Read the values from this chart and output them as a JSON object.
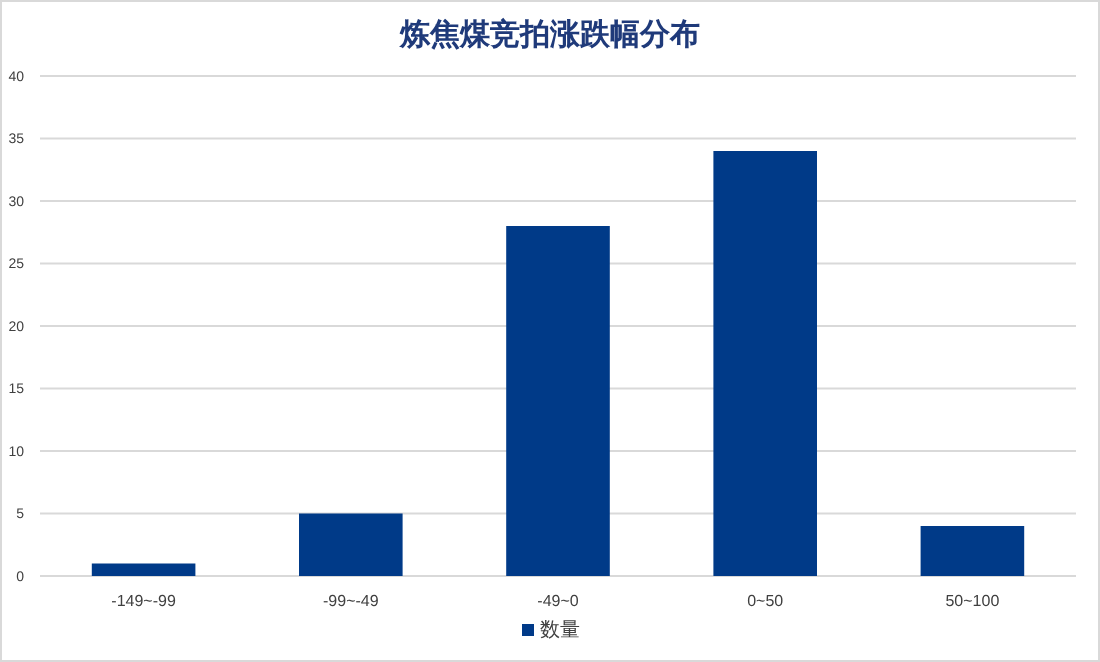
{
  "chart_data": {
    "type": "bar",
    "title": "炼焦煤竞拍涨跌幅分布",
    "categories": [
      "-149~-99",
      "-99~-49",
      "-49~0",
      "0~50",
      "50~100"
    ],
    "series": [
      {
        "name": "数量",
        "color": "#003a88",
        "values": [
          1,
          5,
          28,
          34,
          4
        ]
      }
    ],
    "ylim": [
      0,
      40
    ],
    "yticks": [
      0,
      5,
      10,
      15,
      20,
      25,
      30,
      35,
      40
    ],
    "grid": "y",
    "legend": "bottom"
  }
}
